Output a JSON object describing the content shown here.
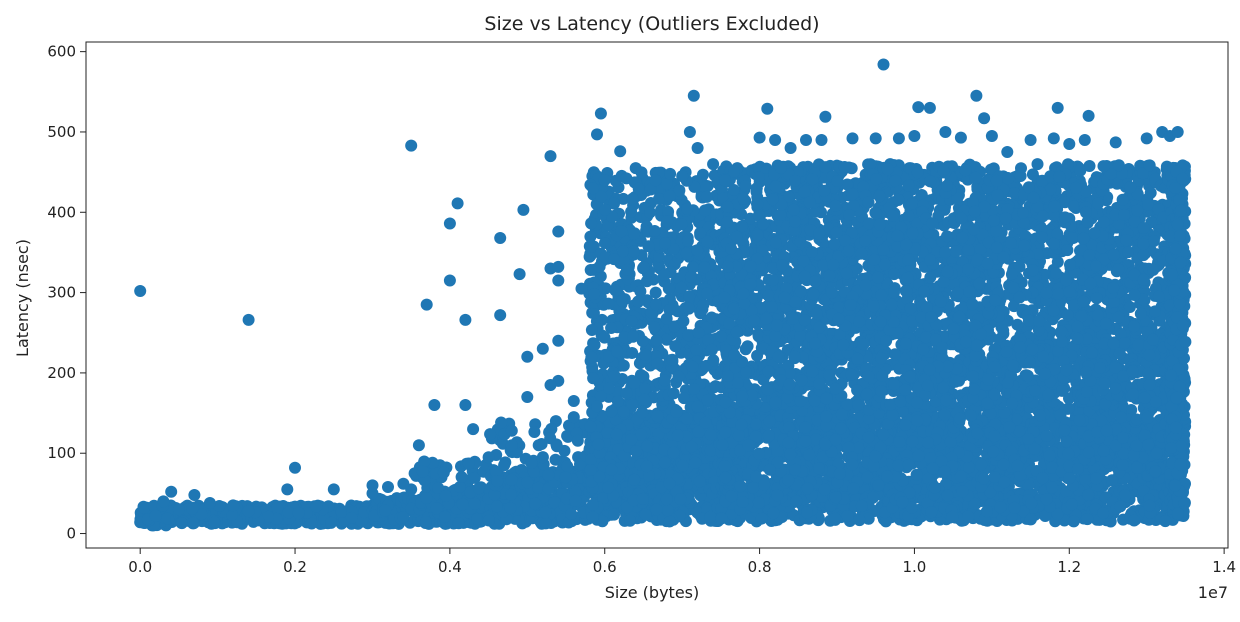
{
  "chart_data": {
    "type": "scatter",
    "title": "Size vs Latency (Outliers Excluded)",
    "xlabel": "Size (bytes)",
    "ylabel": "Latency (nsec)",
    "x_offset_label": "1e7",
    "x_scale": 10000000,
    "xlim": [
      -0.07,
      1.405
    ],
    "ylim": [
      -18,
      612
    ],
    "xticks": [
      0.0,
      0.2,
      0.4,
      0.6,
      0.8,
      1.0,
      1.2,
      1.4
    ],
    "xtick_labels": [
      "0.0",
      "0.2",
      "0.4",
      "0.6",
      "0.8",
      "1.0",
      "1.2",
      "1.4"
    ],
    "yticks": [
      0,
      100,
      200,
      300,
      400,
      500,
      600
    ],
    "ytick_labels": [
      "0",
      "100",
      "200",
      "300",
      "400",
      "500",
      "600"
    ],
    "grid": false,
    "marker_color": "#1f77b4",
    "series": [
      {
        "points": [
          [
            0.0,
            302
          ],
          [
            0.0,
            14
          ],
          [
            0.01,
            18
          ],
          [
            0.02,
            22
          ],
          [
            0.03,
            40
          ],
          [
            0.04,
            52
          ],
          [
            0.05,
            30
          ],
          [
            0.07,
            48
          ],
          [
            0.09,
            38
          ],
          [
            0.12,
            35
          ],
          [
            0.14,
            28
          ],
          [
            0.19,
            55
          ],
          [
            0.25,
            55
          ],
          [
            0.35,
            55
          ],
          [
            0.3,
            50
          ],
          [
            0.34,
            62
          ],
          [
            0.32,
            58
          ],
          [
            0.14,
            266
          ],
          [
            0.2,
            82
          ],
          [
            0.35,
            483
          ],
          [
            0.3,
            60
          ],
          [
            0.36,
            110
          ],
          [
            0.37,
            285
          ],
          [
            0.38,
            160
          ],
          [
            0.4,
            315
          ],
          [
            0.4,
            386
          ],
          [
            0.41,
            411
          ],
          [
            0.42,
            266
          ],
          [
            0.42,
            160
          ],
          [
            0.43,
            130
          ],
          [
            0.45,
            95
          ],
          [
            0.47,
            85
          ],
          [
            0.48,
            110
          ],
          [
            0.465,
            368
          ],
          [
            0.465,
            272
          ],
          [
            0.48,
            128
          ],
          [
            0.49,
            323
          ],
          [
            0.495,
            403
          ],
          [
            0.5,
            220
          ],
          [
            0.5,
            170
          ],
          [
            0.52,
            230
          ],
          [
            0.53,
            470
          ],
          [
            0.53,
            330
          ],
          [
            0.54,
            376
          ],
          [
            0.54,
            332
          ],
          [
            0.54,
            315
          ],
          [
            0.54,
            240
          ],
          [
            0.54,
            190
          ],
          [
            0.53,
            185
          ],
          [
            0.56,
            165
          ],
          [
            0.56,
            145
          ],
          [
            0.57,
            305
          ],
          [
            0.585,
            430
          ],
          [
            0.59,
            497
          ],
          [
            0.595,
            523
          ],
          [
            0.6,
            440
          ],
          [
            0.62,
            476
          ],
          [
            0.64,
            455
          ],
          [
            0.7,
            445
          ],
          [
            0.71,
            500
          ],
          [
            0.715,
            545
          ],
          [
            0.72,
            480
          ],
          [
            0.74,
            460
          ],
          [
            0.8,
            493
          ],
          [
            0.81,
            529
          ],
          [
            0.82,
            490
          ],
          [
            0.84,
            480
          ],
          [
            0.86,
            490
          ],
          [
            0.88,
            490
          ],
          [
            0.885,
            519
          ],
          [
            0.92,
            492
          ],
          [
            0.95,
            492
          ],
          [
            0.96,
            584
          ],
          [
            0.98,
            492
          ],
          [
            1.0,
            495
          ],
          [
            1.005,
            531
          ],
          [
            1.02,
            530
          ],
          [
            1.04,
            500
          ],
          [
            1.06,
            493
          ],
          [
            1.08,
            545
          ],
          [
            1.09,
            517
          ],
          [
            1.1,
            495
          ],
          [
            1.12,
            475
          ],
          [
            1.15,
            490
          ],
          [
            1.18,
            492
          ],
          [
            1.185,
            530
          ],
          [
            1.2,
            485
          ],
          [
            1.22,
            490
          ],
          [
            1.225,
            520
          ],
          [
            1.26,
            487
          ],
          [
            1.3,
            492
          ],
          [
            1.32,
            500
          ],
          [
            1.33,
            495
          ],
          [
            1.34,
            500
          ]
        ]
      }
    ],
    "dense_regions": [
      {
        "x_range": [
          0.0,
          0.05
        ],
        "y_range": [
          10,
          35
        ],
        "count": 90
      },
      {
        "x_range": [
          0.05,
          0.3
        ],
        "y_range": [
          12,
          35
        ],
        "count": 380
      },
      {
        "x_range": [
          0.3,
          0.45
        ],
        "y_range": [
          12,
          45
        ],
        "count": 260
      },
      {
        "x_range": [
          0.35,
          0.45
        ],
        "y_range": [
          30,
          90
        ],
        "count": 90
      },
      {
        "x_range": [
          0.45,
          0.58
        ],
        "y_range": [
          12,
          80
        ],
        "count": 260
      },
      {
        "x_range": [
          0.45,
          0.58
        ],
        "y_range": [
          60,
          140
        ],
        "count": 70
      },
      {
        "x_range": [
          0.58,
          0.75
        ],
        "y_range": [
          15,
          150
        ],
        "count": 820
      },
      {
        "x_range": [
          0.58,
          0.75
        ],
        "y_range": [
          150,
          450
        ],
        "count": 640
      },
      {
        "x_range": [
          0.75,
          1.35
        ],
        "y_range": [
          15,
          160
        ],
        "count": 2400
      },
      {
        "x_range": [
          0.75,
          1.35
        ],
        "y_range": [
          160,
          460
        ],
        "count": 3400
      },
      {
        "x_range": [
          1.33,
          1.35
        ],
        "y_range": [
          20,
          460
        ],
        "count": 260
      }
    ]
  }
}
